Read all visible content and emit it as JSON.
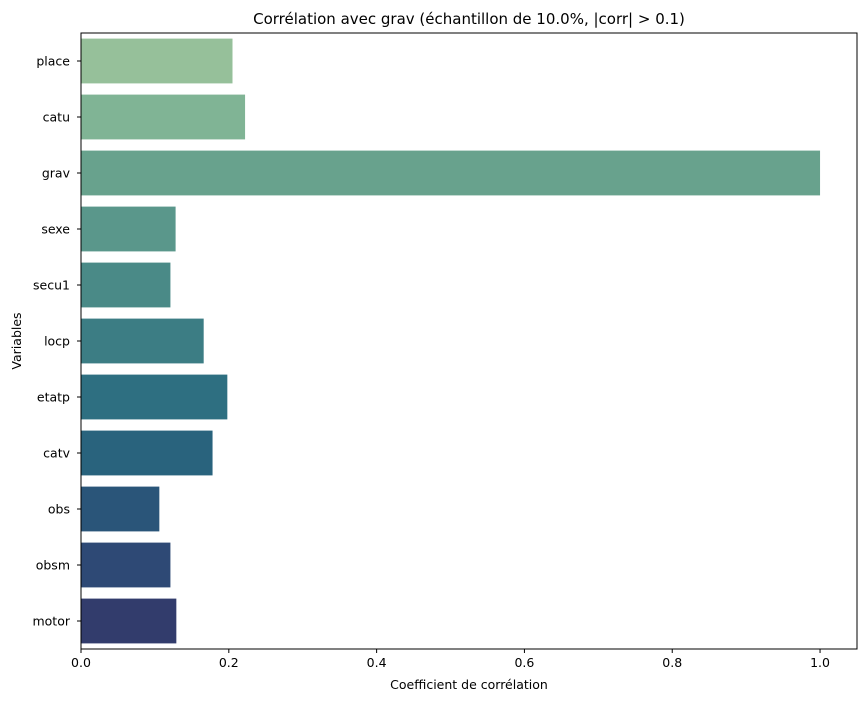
{
  "chart_data": {
    "type": "bar",
    "orientation": "horizontal",
    "title": "Corrélation avec grav (échantillon de 10.0%, |corr| > 0.1)",
    "xlabel": "Coefficient de corrélation",
    "ylabel": "Variables",
    "categories": [
      "place",
      "catu",
      "grav",
      "sexe",
      "secu1",
      "locp",
      "etatp",
      "catv",
      "obs",
      "obsm",
      "motor"
    ],
    "values": [
      0.205,
      0.222,
      1.0,
      0.128,
      0.121,
      0.166,
      0.198,
      0.178,
      0.106,
      0.121,
      0.129
    ],
    "colors": [
      "#96c09a",
      "#80b495",
      "#68a28d",
      "#5a978b",
      "#4a8a87",
      "#3c7d84",
      "#2e6f81",
      "#29637d",
      "#2a5579",
      "#2e4975",
      "#323c6c"
    ],
    "xlim": [
      0,
      1.05
    ],
    "xticks": [
      0.0,
      0.2,
      0.4,
      0.6,
      0.8,
      1.0
    ],
    "xtick_labels": [
      "0.0",
      "0.2",
      "0.4",
      "0.6",
      "0.8",
      "1.0"
    ],
    "grid": false,
    "legend": "none"
  }
}
